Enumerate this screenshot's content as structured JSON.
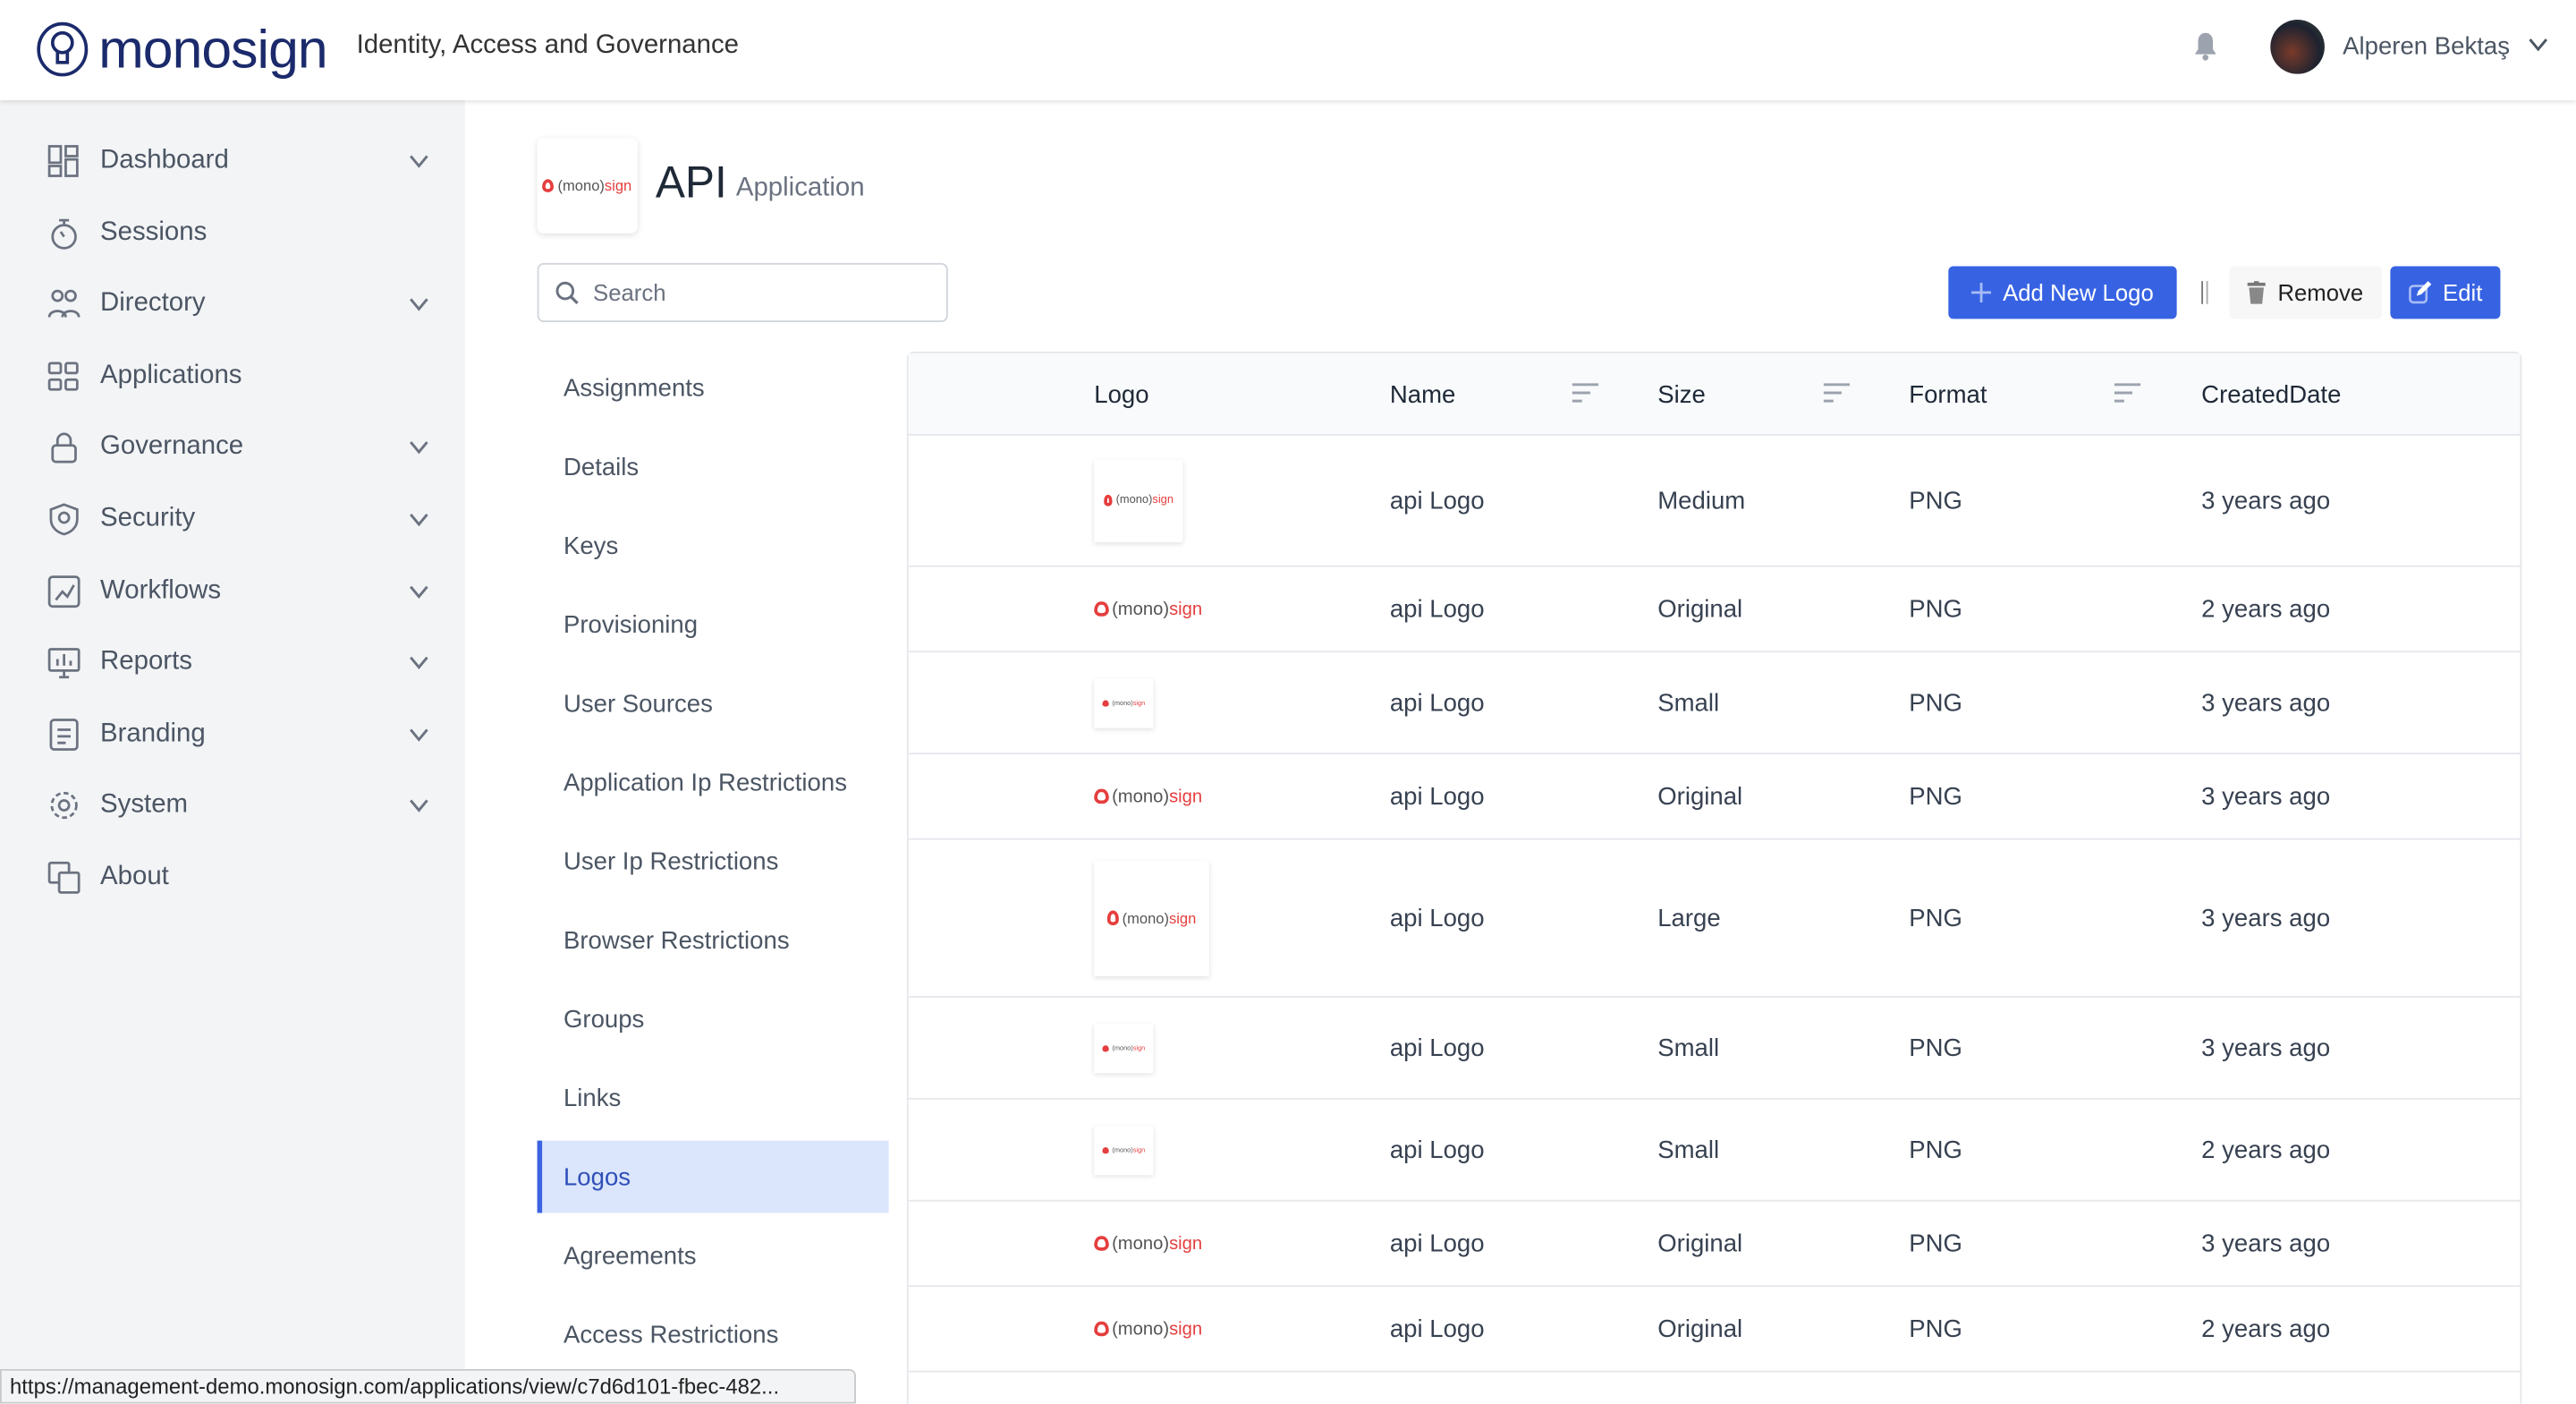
{
  "header": {
    "brand": "monosign",
    "tagline": "Identity, Access and Governance",
    "user_name": "Alperen Bektaş"
  },
  "sidebar": {
    "items": [
      {
        "label": "Dashboard",
        "icon": "dashboard-icon",
        "expandable": true
      },
      {
        "label": "Sessions",
        "icon": "stopwatch-icon",
        "expandable": false
      },
      {
        "label": "Directory",
        "icon": "users-icon",
        "expandable": true
      },
      {
        "label": "Applications",
        "icon": "apps-icon",
        "expandable": false
      },
      {
        "label": "Governance",
        "icon": "lock-icon",
        "expandable": true
      },
      {
        "label": "Security",
        "icon": "shield-icon",
        "expandable": true
      },
      {
        "label": "Workflows",
        "icon": "workflow-icon",
        "expandable": true
      },
      {
        "label": "Reports",
        "icon": "reports-icon",
        "expandable": true
      },
      {
        "label": "Branding",
        "icon": "branding-icon",
        "expandable": true
      },
      {
        "label": "System",
        "icon": "gear-icon",
        "expandable": true
      },
      {
        "label": "About",
        "icon": "about-icon",
        "expandable": false
      }
    ]
  },
  "app": {
    "title": "API",
    "subtitle": "Application",
    "logo_text_a": "(mono)",
    "logo_text_b": "sign"
  },
  "search": {
    "placeholder": "Search",
    "value": ""
  },
  "subnav": {
    "active": "Logos",
    "items": [
      "Assignments",
      "Details",
      "Keys",
      "Provisioning",
      "User Sources",
      "Application Ip Restrictions",
      "User Ip Restrictions",
      "Browser Restrictions",
      "Groups",
      "Links",
      "Logos",
      "Agreements",
      "Access Restrictions"
    ]
  },
  "toolbar": {
    "add_label": "Add New Logo",
    "remove_label": "Remove",
    "edit_label": "Edit",
    "accent": "#3763e3"
  },
  "table": {
    "columns": [
      "Logo",
      "Name",
      "Size",
      "Format",
      "CreatedDate"
    ],
    "rows": [
      {
        "name": "api Logo",
        "size": "Medium",
        "format": "PNG",
        "created": "3 years ago"
      },
      {
        "name": "api Logo",
        "size": "Original",
        "format": "PNG",
        "created": "2 years ago"
      },
      {
        "name": "api Logo",
        "size": "Small",
        "format": "PNG",
        "created": "3 years ago"
      },
      {
        "name": "api Logo",
        "size": "Original",
        "format": "PNG",
        "created": "3 years ago"
      },
      {
        "name": "api Logo",
        "size": "Large",
        "format": "PNG",
        "created": "3 years ago"
      },
      {
        "name": "api Logo",
        "size": "Small",
        "format": "PNG",
        "created": "3 years ago"
      },
      {
        "name": "api Logo",
        "size": "Small",
        "format": "PNG",
        "created": "2 years ago"
      },
      {
        "name": "api Logo",
        "size": "Original",
        "format": "PNG",
        "created": "3 years ago"
      },
      {
        "name": "api Logo",
        "size": "Original",
        "format": "PNG",
        "created": "2 years ago"
      }
    ]
  },
  "statusbar": {
    "url": "https://management-demo.monosign.com/applications/view/c7d6d101-fbec-482..."
  }
}
